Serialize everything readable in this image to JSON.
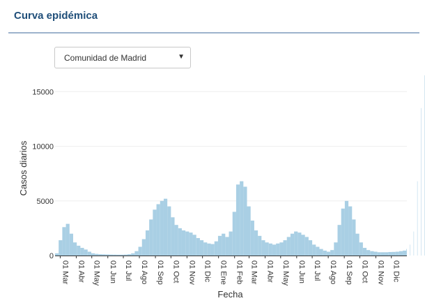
{
  "header": {
    "title": "Curva epidémica"
  },
  "region_select": {
    "value": "Comunidad de Madrid",
    "caret": "▼"
  },
  "colors": {
    "bars": "#a9cfe4",
    "axis": "#333333",
    "grid": "#eeeeee",
    "title": "#1f4e79"
  },
  "chart_data": {
    "type": "bar",
    "title": "",
    "xlabel": "Fecha",
    "ylabel": "Casos diarios",
    "ylim": [
      0,
      17000
    ],
    "y_ticks": [
      0,
      5000,
      10000,
      15000
    ],
    "y_tick_labels": [
      "0",
      "5000",
      "10000",
      "15000"
    ],
    "x_ticks": [
      "2020-03-01",
      "2020-04-01",
      "2020-05-01",
      "2020-06-01",
      "2020-07-01",
      "2020-08-01",
      "2020-09-01",
      "2020-10-01",
      "2020-11-01",
      "2020-12-01",
      "2021-01-01",
      "2021-02-01",
      "2021-03-01",
      "2021-04-01",
      "2021-05-01",
      "2021-06-01",
      "2021-07-01",
      "2021-08-01",
      "2021-09-01",
      "2021-10-01",
      "2021-11-01",
      "2021-12-01"
    ],
    "x_tick_labels": [
      "01 Mar",
      "01 Abr",
      "01 May",
      "01 Jun",
      "01 Jul",
      "01 Ago",
      "01 Sep",
      "01 Oct",
      "01 Nov",
      "01 Dic",
      "01 Ene",
      "01 Feb",
      "01 Mar",
      "01 Abr",
      "01 May",
      "01 Jun",
      "01 Jul",
      "01 Ago",
      "01 Sep",
      "01 Oct",
      "01 Nov",
      "01 Dic"
    ],
    "x_range": [
      "2020-02-20",
      "2021-12-31"
    ],
    "grid": true,
    "series": [
      {
        "values_per": "week",
        "start": "2020-02-20",
        "values": [
          200,
          1400,
          2600,
          2900,
          2000,
          1200,
          900,
          700,
          550,
          350,
          200,
          150,
          120,
          110,
          100,
          90,
          85,
          80,
          80,
          90,
          120,
          200,
          400,
          800,
          1500,
          2300,
          3300,
          4200,
          4700,
          5000,
          5200,
          4500,
          3500,
          2800,
          2500,
          2300,
          2200,
          2100,
          1900,
          1600,
          1400,
          1200,
          1100,
          1050,
          1300,
          1800,
          2000,
          1700,
          2200,
          4000,
          6500,
          6800,
          6300,
          4500,
          3200,
          2300,
          1800,
          1400,
          1200,
          1100,
          1000,
          1100,
          1200,
          1400,
          1700,
          2000,
          2200,
          2100,
          1900,
          1700,
          1400,
          1000,
          800,
          600,
          450,
          350,
          500,
          1200,
          2800,
          4300,
          5000,
          4500,
          3300,
          2000,
          1200,
          700,
          500,
          400,
          350,
          300,
          300,
          300,
          320,
          330,
          350,
          400,
          450,
          600,
          1000,
          2200,
          6800,
          13500,
          16500
        ]
      }
    ]
  }
}
